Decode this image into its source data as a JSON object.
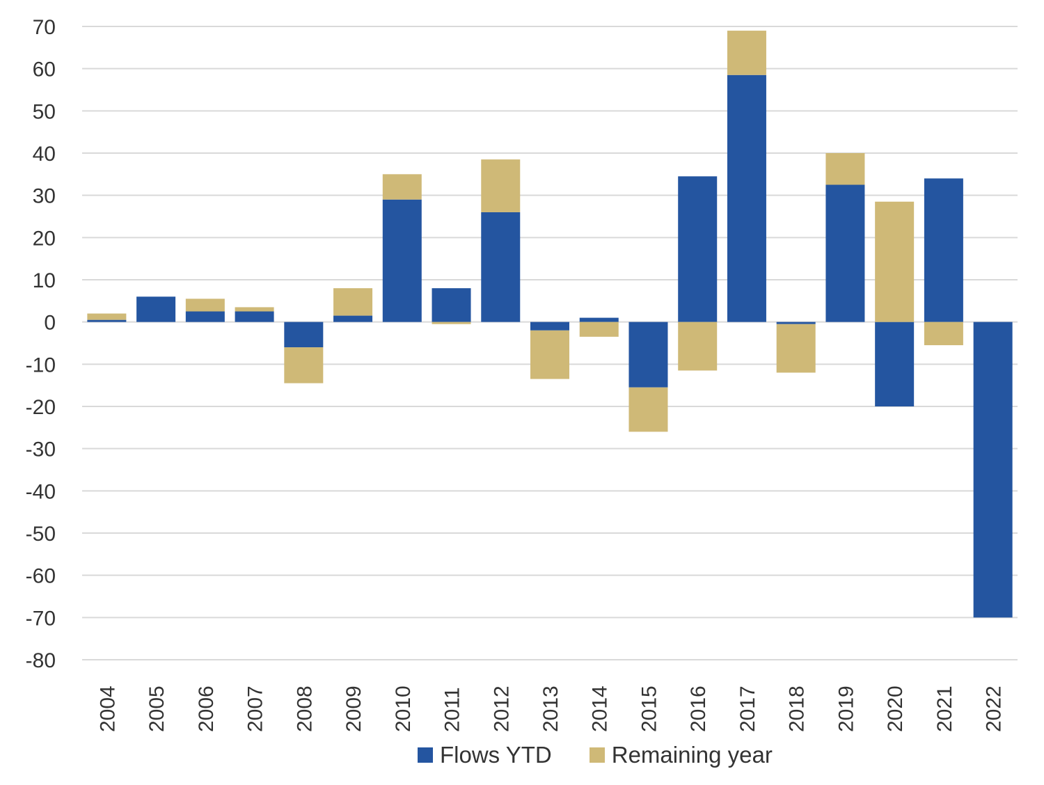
{
  "chart_data": {
    "type": "bar",
    "stacked": true,
    "categories": [
      "2004",
      "2005",
      "2006",
      "2007",
      "2008",
      "2009",
      "2010",
      "2011",
      "2012",
      "2013",
      "2014",
      "2015",
      "2016",
      "2017",
      "2018",
      "2019",
      "2020",
      "2021",
      "2022"
    ],
    "series": [
      {
        "name": "Flows YTD",
        "color": "#2455a0",
        "values": [
          0.5,
          6,
          2.5,
          2.5,
          -6,
          1.5,
          29,
          8,
          26,
          -2,
          1,
          -15.5,
          34.5,
          58.5,
          -0.5,
          32.5,
          -20,
          34,
          -70
        ]
      },
      {
        "name": "Remaining year",
        "color": "#cfb977",
        "values": [
          1.5,
          0,
          3,
          1,
          -8.5,
          6.5,
          6,
          -0.5,
          12.5,
          -11.5,
          -3.5,
          -10.5,
          -11.5,
          10.5,
          -11.5,
          7.5,
          28.5,
          -5.5,
          0
        ]
      }
    ],
    "ylim": [
      -80,
      70
    ],
    "yticks": [
      70,
      60,
      50,
      40,
      30,
      20,
      10,
      0,
      -10,
      -20,
      -30,
      -40,
      -50,
      -60,
      -70,
      -80
    ],
    "grid": true,
    "legend_position": "bottom"
  }
}
